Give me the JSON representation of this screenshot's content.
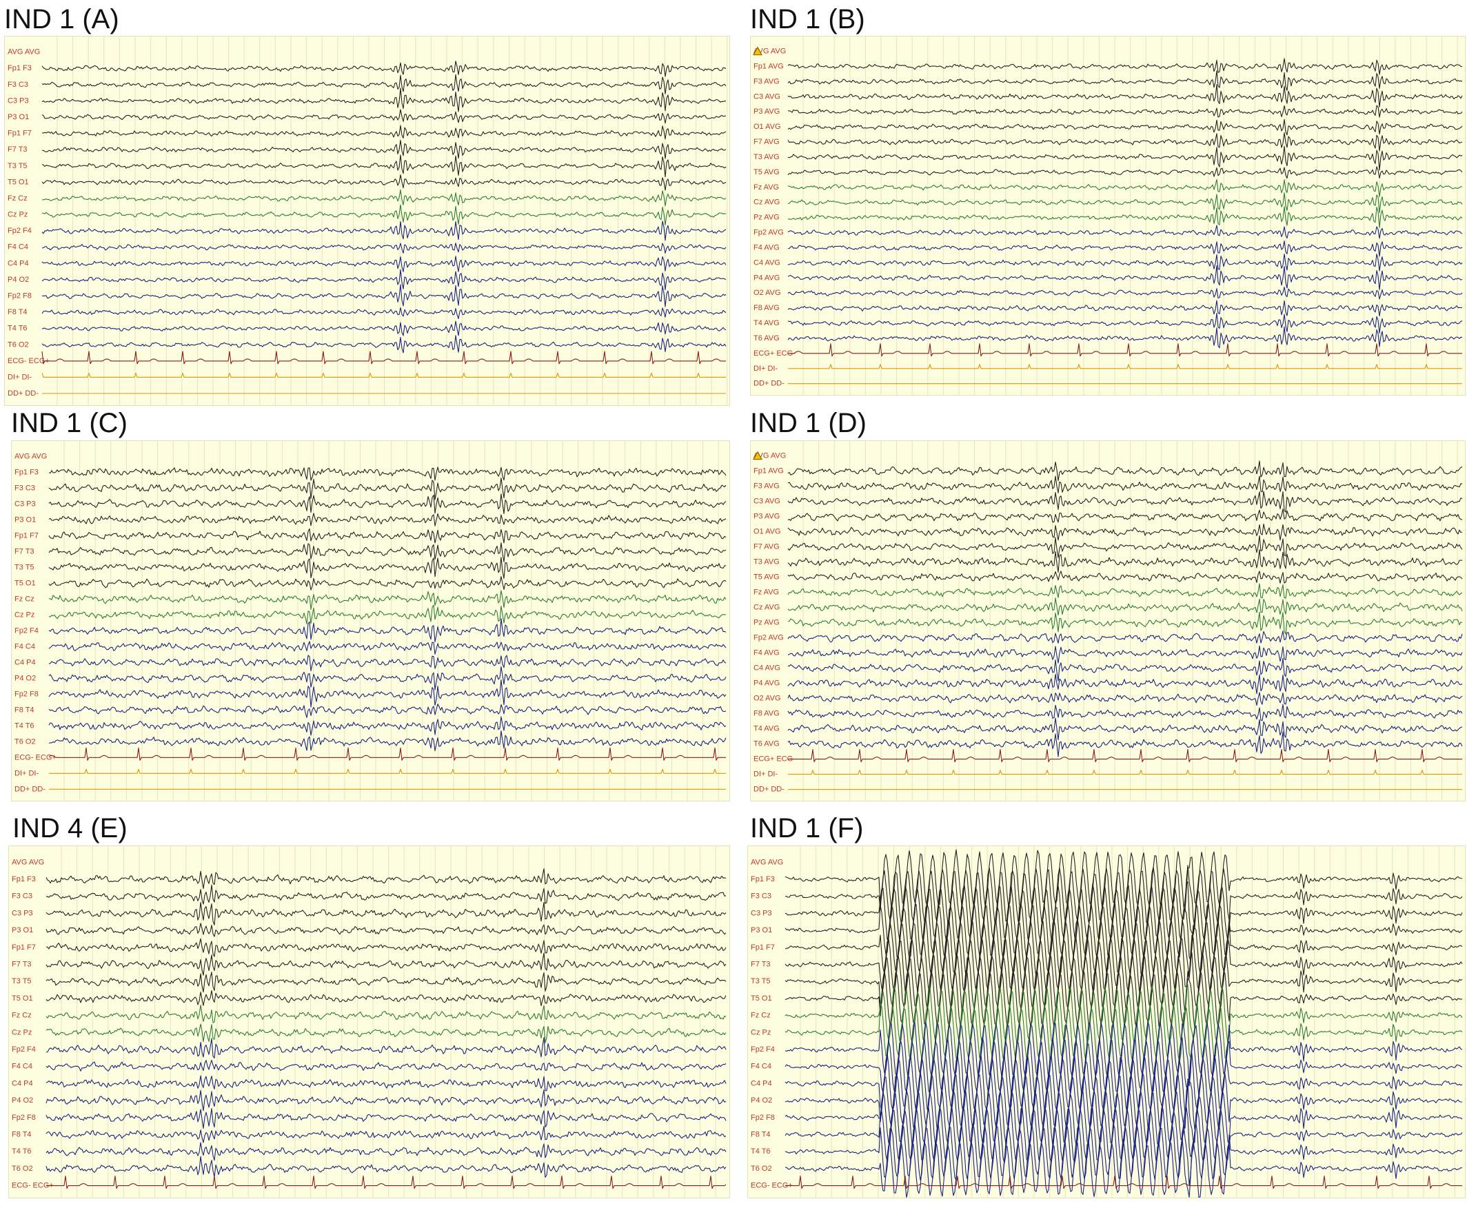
{
  "panels": [
    {
      "title": "IND 1 (A)",
      "warning_icon": false,
      "channels": [
        {
          "label": "AVG AVG",
          "color": "#c0392b",
          "kind": "ref"
        },
        {
          "label": "Fp1 F3",
          "color": "#222222",
          "kind": "eeg"
        },
        {
          "label": "F3 C3",
          "color": "#222222",
          "kind": "eeg"
        },
        {
          "label": "C3 P3",
          "color": "#222222",
          "kind": "eeg"
        },
        {
          "label": "P3 O1",
          "color": "#222222",
          "kind": "eeg"
        },
        {
          "label": "Fp1 F7",
          "color": "#222222",
          "kind": "eeg"
        },
        {
          "label": "F7 T3",
          "color": "#222222",
          "kind": "eeg"
        },
        {
          "label": "T3 T5",
          "color": "#222222",
          "kind": "eeg"
        },
        {
          "label": "T5 O1",
          "color": "#222222",
          "kind": "eeg"
        },
        {
          "label": "Fz Cz",
          "color": "#2e7d32",
          "kind": "eeg"
        },
        {
          "label": "Cz Pz",
          "color": "#2e7d32",
          "kind": "eeg"
        },
        {
          "label": "Fp2 F4",
          "color": "#1a237e",
          "kind": "eeg"
        },
        {
          "label": "F4 C4",
          "color": "#1a237e",
          "kind": "eeg"
        },
        {
          "label": "C4 P4",
          "color": "#1a237e",
          "kind": "eeg"
        },
        {
          "label": "P4 O2",
          "color": "#1a237e",
          "kind": "eeg"
        },
        {
          "label": "Fp2 F8",
          "color": "#1a237e",
          "kind": "eeg"
        },
        {
          "label": "F8 T4",
          "color": "#1a237e",
          "kind": "eeg"
        },
        {
          "label": "T4 T6",
          "color": "#1a237e",
          "kind": "eeg"
        },
        {
          "label": "T6 O2",
          "color": "#1a237e",
          "kind": "eeg"
        },
        {
          "label": "ECG- ECG+",
          "color": "#8b1a1a",
          "kind": "ecg"
        },
        {
          "label": "DI+ DI-",
          "color": "#e69500",
          "kind": "di"
        },
        {
          "label": "DD+ DD-",
          "color": "#e69500",
          "kind": "flat"
        }
      ]
    },
    {
      "title": "IND 1 (B)",
      "warning_icon": true,
      "channels": [
        {
          "label": "AVG AVG",
          "color": "#c0392b",
          "kind": "ref"
        },
        {
          "label": "Fp1 AVG",
          "color": "#222222",
          "kind": "eeg"
        },
        {
          "label": "F3 AVG",
          "color": "#222222",
          "kind": "eeg"
        },
        {
          "label": "C3 AVG",
          "color": "#222222",
          "kind": "eeg"
        },
        {
          "label": "P3 AVG",
          "color": "#222222",
          "kind": "eeg"
        },
        {
          "label": "O1 AVG",
          "color": "#222222",
          "kind": "eeg"
        },
        {
          "label": "F7 AVG",
          "color": "#222222",
          "kind": "eeg"
        },
        {
          "label": "T3 AVG",
          "color": "#222222",
          "kind": "eeg"
        },
        {
          "label": "T5 AVG",
          "color": "#222222",
          "kind": "eeg"
        },
        {
          "label": "Fz AVG",
          "color": "#2e7d32",
          "kind": "eeg"
        },
        {
          "label": "Cz AVG",
          "color": "#2e7d32",
          "kind": "eeg"
        },
        {
          "label": "Pz AVG",
          "color": "#2e7d32",
          "kind": "eeg"
        },
        {
          "label": "Fp2 AVG",
          "color": "#1a237e",
          "kind": "eeg"
        },
        {
          "label": "F4 AVG",
          "color": "#1a237e",
          "kind": "eeg"
        },
        {
          "label": "C4 AVG",
          "color": "#1a237e",
          "kind": "eeg"
        },
        {
          "label": "P4 AVG",
          "color": "#1a237e",
          "kind": "eeg"
        },
        {
          "label": "O2 AVG",
          "color": "#1a237e",
          "kind": "eeg"
        },
        {
          "label": "F8 AVG",
          "color": "#1a237e",
          "kind": "eeg"
        },
        {
          "label": "T4 AVG",
          "color": "#1a237e",
          "kind": "eeg"
        },
        {
          "label": "T6 AVG",
          "color": "#1a237e",
          "kind": "eeg"
        },
        {
          "label": "ECG+ ECG-",
          "color": "#8b1a1a",
          "kind": "ecg"
        },
        {
          "label": "DI+ DI-",
          "color": "#e69500",
          "kind": "di"
        },
        {
          "label": "DD+ DD-",
          "color": "#e69500",
          "kind": "flat"
        }
      ]
    },
    {
      "title": "IND 1 (C)",
      "warning_icon": false,
      "channels": [
        {
          "label": "AVG AVG",
          "color": "#c0392b",
          "kind": "ref"
        },
        {
          "label": "Fp1 F3",
          "color": "#222222",
          "kind": "eeg"
        },
        {
          "label": "F3 C3",
          "color": "#222222",
          "kind": "eeg"
        },
        {
          "label": "C3 P3",
          "color": "#222222",
          "kind": "eeg"
        },
        {
          "label": "P3 O1",
          "color": "#222222",
          "kind": "eeg"
        },
        {
          "label": "Fp1 F7",
          "color": "#222222",
          "kind": "eeg"
        },
        {
          "label": "F7 T3",
          "color": "#222222",
          "kind": "eeg"
        },
        {
          "label": "T3 T5",
          "color": "#222222",
          "kind": "eeg"
        },
        {
          "label": "T5 O1",
          "color": "#222222",
          "kind": "eeg"
        },
        {
          "label": "Fz Cz",
          "color": "#2e7d32",
          "kind": "eeg"
        },
        {
          "label": "Cz Pz",
          "color": "#2e7d32",
          "kind": "eeg"
        },
        {
          "label": "Fp2 F4",
          "color": "#1a237e",
          "kind": "eeg"
        },
        {
          "label": "F4 C4",
          "color": "#1a237e",
          "kind": "eeg"
        },
        {
          "label": "C4 P4",
          "color": "#1a237e",
          "kind": "eeg"
        },
        {
          "label": "P4 O2",
          "color": "#1a237e",
          "kind": "eeg"
        },
        {
          "label": "Fp2 F8",
          "color": "#1a237e",
          "kind": "eeg"
        },
        {
          "label": "F8 T4",
          "color": "#1a237e",
          "kind": "eeg"
        },
        {
          "label": "T4 T6",
          "color": "#1a237e",
          "kind": "eeg"
        },
        {
          "label": "T6 O2",
          "color": "#1a237e",
          "kind": "eeg"
        },
        {
          "label": "ECG- ECG+",
          "color": "#8b1a1a",
          "kind": "ecg"
        },
        {
          "label": "DI+ DI-",
          "color": "#e69500",
          "kind": "di"
        },
        {
          "label": "DD+ DD-",
          "color": "#e69500",
          "kind": "flat"
        }
      ]
    },
    {
      "title": "IND 1 (D)",
      "warning_icon": true,
      "channels": [
        {
          "label": "AVG AVG",
          "color": "#c0392b",
          "kind": "ref"
        },
        {
          "label": "Fp1 AVG",
          "color": "#222222",
          "kind": "eeg"
        },
        {
          "label": "F3 AVG",
          "color": "#222222",
          "kind": "eeg"
        },
        {
          "label": "C3 AVG",
          "color": "#222222",
          "kind": "eeg"
        },
        {
          "label": "P3 AVG",
          "color": "#222222",
          "kind": "eeg"
        },
        {
          "label": "O1 AVG",
          "color": "#222222",
          "kind": "eeg"
        },
        {
          "label": "F7 AVG",
          "color": "#222222",
          "kind": "eeg"
        },
        {
          "label": "T3 AVG",
          "color": "#222222",
          "kind": "eeg"
        },
        {
          "label": "T5 AVG",
          "color": "#222222",
          "kind": "eeg"
        },
        {
          "label": "Fz AVG",
          "color": "#2e7d32",
          "kind": "eeg"
        },
        {
          "label": "Cz AVG",
          "color": "#2e7d32",
          "kind": "eeg"
        },
        {
          "label": "Pz AVG",
          "color": "#2e7d32",
          "kind": "eeg"
        },
        {
          "label": "Fp2 AVG",
          "color": "#1a237e",
          "kind": "eeg"
        },
        {
          "label": "F4 AVG",
          "color": "#1a237e",
          "kind": "eeg"
        },
        {
          "label": "C4 AVG",
          "color": "#1a237e",
          "kind": "eeg"
        },
        {
          "label": "P4 AVG",
          "color": "#1a237e",
          "kind": "eeg"
        },
        {
          "label": "O2 AVG",
          "color": "#1a237e",
          "kind": "eeg"
        },
        {
          "label": "F8 AVG",
          "color": "#1a237e",
          "kind": "eeg"
        },
        {
          "label": "T4 AVG",
          "color": "#1a237e",
          "kind": "eeg"
        },
        {
          "label": "T6 AVG",
          "color": "#1a237e",
          "kind": "eeg"
        },
        {
          "label": "ECG+ ECG-",
          "color": "#8b1a1a",
          "kind": "ecg"
        },
        {
          "label": "DI+ DI-",
          "color": "#e69500",
          "kind": "di"
        },
        {
          "label": "DD+ DD-",
          "color": "#e69500",
          "kind": "flat"
        }
      ]
    },
    {
      "title": "IND 4 (E)",
      "warning_icon": false,
      "channels": [
        {
          "label": "AVG AVG",
          "color": "#c0392b",
          "kind": "ref"
        },
        {
          "label": "Fp1 F3",
          "color": "#222222",
          "kind": "eeg"
        },
        {
          "label": "F3 C3",
          "color": "#222222",
          "kind": "eeg"
        },
        {
          "label": "C3 P3",
          "color": "#222222",
          "kind": "eeg"
        },
        {
          "label": "P3 O1",
          "color": "#222222",
          "kind": "eeg"
        },
        {
          "label": "Fp1 F7",
          "color": "#222222",
          "kind": "eeg"
        },
        {
          "label": "F7 T3",
          "color": "#222222",
          "kind": "eeg"
        },
        {
          "label": "T3 T5",
          "color": "#222222",
          "kind": "eeg"
        },
        {
          "label": "T5 O1",
          "color": "#222222",
          "kind": "eeg"
        },
        {
          "label": "Fz Cz",
          "color": "#2e7d32",
          "kind": "eeg"
        },
        {
          "label": "Cz Pz",
          "color": "#2e7d32",
          "kind": "eeg"
        },
        {
          "label": "Fp2 F4",
          "color": "#1a237e",
          "kind": "eeg"
        },
        {
          "label": "F4 C4",
          "color": "#1a237e",
          "kind": "eeg"
        },
        {
          "label": "C4 P4",
          "color": "#1a237e",
          "kind": "eeg"
        },
        {
          "label": "P4 O2",
          "color": "#1a237e",
          "kind": "eeg"
        },
        {
          "label": "Fp2 F8",
          "color": "#1a237e",
          "kind": "eeg"
        },
        {
          "label": "F8 T4",
          "color": "#1a237e",
          "kind": "eeg"
        },
        {
          "label": "T4 T6",
          "color": "#1a237e",
          "kind": "eeg"
        },
        {
          "label": "T6 O2",
          "color": "#1a237e",
          "kind": "eeg"
        },
        {
          "label": "ECG- ECG+",
          "color": "#8b1a1a",
          "kind": "ecg"
        }
      ]
    },
    {
      "title": "IND 1 (F)",
      "warning_icon": false,
      "channels": [
        {
          "label": "AVG AVG",
          "color": "#c0392b",
          "kind": "ref"
        },
        {
          "label": "Fp1 F3",
          "color": "#222222",
          "kind": "eeg"
        },
        {
          "label": "F3 C3",
          "color": "#222222",
          "kind": "eeg"
        },
        {
          "label": "C3 P3",
          "color": "#222222",
          "kind": "eeg"
        },
        {
          "label": "P3 O1",
          "color": "#222222",
          "kind": "eeg"
        },
        {
          "label": "Fp1 F7",
          "color": "#222222",
          "kind": "eeg"
        },
        {
          "label": "F7 T3",
          "color": "#222222",
          "kind": "eeg"
        },
        {
          "label": "T3 T5",
          "color": "#222222",
          "kind": "eeg"
        },
        {
          "label": "T5 O1",
          "color": "#222222",
          "kind": "eeg"
        },
        {
          "label": "Fz Cz",
          "color": "#2e7d32",
          "kind": "eeg"
        },
        {
          "label": "Cz Pz",
          "color": "#2e7d32",
          "kind": "eeg"
        },
        {
          "label": "Fp2 F4",
          "color": "#1a237e",
          "kind": "eeg"
        },
        {
          "label": "F4 C4",
          "color": "#1a237e",
          "kind": "eeg"
        },
        {
          "label": "C4 P4",
          "color": "#1a237e",
          "kind": "eeg"
        },
        {
          "label": "P4 O2",
          "color": "#1a237e",
          "kind": "eeg"
        },
        {
          "label": "Fp2 F8",
          "color": "#1a237e",
          "kind": "eeg"
        },
        {
          "label": "F8 T4",
          "color": "#1a237e",
          "kind": "eeg"
        },
        {
          "label": "T4 T6",
          "color": "#1a237e",
          "kind": "eeg"
        },
        {
          "label": "T6 O2",
          "color": "#1a237e",
          "kind": "eeg"
        },
        {
          "label": "ECG- ECG+",
          "color": "#8b1a1a",
          "kind": "ecg"
        }
      ]
    }
  ]
}
